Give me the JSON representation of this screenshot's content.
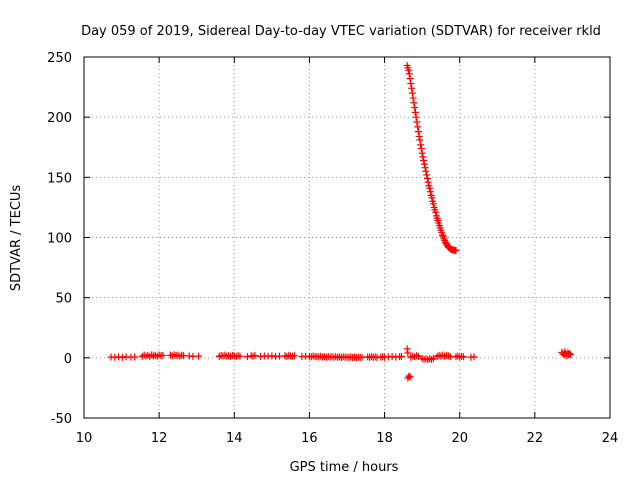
{
  "chart_data": {
    "type": "scatter",
    "title": "Day 059 of 2019, Sidereal Day-to-day VTEC variation (SDTVAR) for receiver rkld",
    "xlabel": "GPS time / hours",
    "ylabel": "SDTVAR / TECUs",
    "xlim": [
      10,
      24
    ],
    "ylim": [
      -50,
      250
    ],
    "xticks": [
      10,
      12,
      14,
      16,
      18,
      20,
      22,
      24
    ],
    "yticks": [
      -50,
      0,
      50,
      100,
      150,
      200,
      250
    ],
    "grid": true,
    "marker": "plus",
    "color": "#ff0000",
    "series": [
      {
        "name": "SDTVAR",
        "points": [
          [
            10.72,
            0.6
          ],
          [
            10.82,
            0.5
          ],
          [
            10.92,
            0.8
          ],
          [
            11.02,
            0.4
          ],
          [
            11.12,
            0.9
          ],
          [
            11.25,
            0.6
          ],
          [
            11.35,
            0.7
          ],
          [
            11.55,
            1.2
          ],
          [
            11.6,
            2.3
          ],
          [
            11.65,
            1.5
          ],
          [
            11.7,
            2.0
          ],
          [
            11.75,
            1.0
          ],
          [
            11.8,
            2.5
          ],
          [
            11.85,
            1.6
          ],
          [
            11.9,
            2.1
          ],
          [
            11.95,
            1.3
          ],
          [
            12.0,
            2.4
          ],
          [
            12.05,
            1.8
          ],
          [
            12.1,
            2.0
          ],
          [
            12.3,
            2.2
          ],
          [
            12.35,
            1.6
          ],
          [
            12.4,
            2.5
          ],
          [
            12.45,
            1.9
          ],
          [
            12.5,
            2.3
          ],
          [
            12.55,
            1.4
          ],
          [
            12.6,
            2.1
          ],
          [
            12.65,
            1.8
          ],
          [
            12.8,
            1.5
          ],
          [
            12.9,
            1.2
          ],
          [
            13.05,
            1.4
          ],
          [
            13.6,
            1.2
          ],
          [
            13.65,
            1.9
          ],
          [
            13.7,
            1.5
          ],
          [
            13.75,
            2.2
          ],
          [
            13.8,
            1.4
          ],
          [
            13.85,
            1.8
          ],
          [
            13.9,
            1.2
          ],
          [
            13.95,
            2.0
          ],
          [
            14.0,
            1.6
          ],
          [
            14.05,
            1.1
          ],
          [
            14.1,
            1.8
          ],
          [
            14.15,
            1.4
          ],
          [
            14.35,
            1.0
          ],
          [
            14.45,
            1.7
          ],
          [
            14.5,
            1.3
          ],
          [
            14.55,
            2.0
          ],
          [
            14.7,
            1.2
          ],
          [
            14.8,
            1.5
          ],
          [
            14.9,
            1.3
          ],
          [
            15.0,
            1.6
          ],
          [
            15.1,
            1.2
          ],
          [
            15.2,
            1.4
          ],
          [
            15.35,
            1.7
          ],
          [
            15.4,
            1.1
          ],
          [
            15.45,
            2.0
          ],
          [
            15.5,
            1.5
          ],
          [
            15.55,
            1.3
          ],
          [
            15.6,
            1.8
          ],
          [
            15.8,
            1.1
          ],
          [
            15.9,
            1.3
          ],
          [
            16.0,
            1.2
          ],
          [
            16.05,
            0.8
          ],
          [
            16.1,
            1.5
          ],
          [
            16.15,
            0.9
          ],
          [
            16.2,
            1.1
          ],
          [
            16.25,
            0.6
          ],
          [
            16.3,
            1.3
          ],
          [
            16.35,
            0.7
          ],
          [
            16.4,
            1.0
          ],
          [
            16.45,
            0.5
          ],
          [
            16.5,
            1.2
          ],
          [
            16.55,
            0.6
          ],
          [
            16.6,
            0.9
          ],
          [
            16.65,
            0.4
          ],
          [
            16.7,
            1.0
          ],
          [
            16.75,
            0.5
          ],
          [
            16.8,
            0.8
          ],
          [
            16.85,
            0.3
          ],
          [
            16.9,
            0.9
          ],
          [
            16.95,
            0.4
          ],
          [
            17.0,
            0.7
          ],
          [
            17.05,
            0.2
          ],
          [
            17.1,
            0.8
          ],
          [
            17.15,
            0.3
          ],
          [
            17.2,
            0.6
          ],
          [
            17.25,
            0.2
          ],
          [
            17.3,
            0.7
          ],
          [
            17.35,
            0.3
          ],
          [
            17.4,
            0.5
          ],
          [
            17.55,
            0.8
          ],
          [
            17.6,
            0.4
          ],
          [
            17.65,
            1.0
          ],
          [
            17.7,
            0.5
          ],
          [
            17.75,
            0.8
          ],
          [
            17.8,
            0.3
          ],
          [
            17.9,
            0.6
          ],
          [
            17.95,
            1.0
          ],
          [
            18.0,
            0.5
          ],
          [
            18.1,
            0.8
          ],
          [
            18.2,
            1.1
          ],
          [
            18.3,
            0.6
          ],
          [
            18.4,
            0.9
          ],
          [
            18.45,
            1.2
          ],
          [
            18.6,
            7.5
          ],
          [
            18.62,
            4.0
          ],
          [
            18.65,
            -15.2
          ],
          [
            18.62,
            -16.8
          ],
          [
            18.68,
            -15.8
          ],
          [
            18.7,
            0.5
          ],
          [
            18.75,
            1.5
          ],
          [
            18.8,
            1.0
          ],
          [
            18.85,
            1.8
          ],
          [
            18.9,
            1.2
          ],
          [
            19.0,
            -0.6
          ],
          [
            19.05,
            -1.2
          ],
          [
            19.1,
            -0.8
          ],
          [
            19.15,
            -1.5
          ],
          [
            19.2,
            -0.9
          ],
          [
            19.25,
            -1.3
          ],
          [
            19.3,
            -0.5
          ],
          [
            19.4,
            1.2
          ],
          [
            19.45,
            2.0
          ],
          [
            19.5,
            1.5
          ],
          [
            19.55,
            2.3
          ],
          [
            19.6,
            1.4
          ],
          [
            19.65,
            2.1
          ],
          [
            19.7,
            1.6
          ],
          [
            19.75,
            1.0
          ],
          [
            19.9,
            0.8
          ],
          [
            19.95,
            1.5
          ],
          [
            20.0,
            0.6
          ],
          [
            20.05,
            1.2
          ],
          [
            20.1,
            0.9
          ],
          [
            20.3,
            0.5
          ],
          [
            20.38,
            0.8
          ],
          [
            22.72,
            4.5
          ],
          [
            22.75,
            3.2
          ],
          [
            22.78,
            2.4
          ],
          [
            22.8,
            5.0
          ],
          [
            22.82,
            3.6
          ],
          [
            22.85,
            1.8
          ],
          [
            22.88,
            4.2
          ],
          [
            22.9,
            2.8
          ],
          [
            22.92,
            3.4
          ],
          [
            22.95,
            2.6
          ],
          [
            18.6,
            243
          ],
          [
            18.62,
            241
          ],
          [
            18.64,
            239
          ],
          [
            18.66,
            236
          ],
          [
            18.68,
            232
          ],
          [
            18.7,
            228
          ],
          [
            18.72,
            224
          ],
          [
            18.74,
            220
          ],
          [
            18.76,
            216
          ],
          [
            18.78,
            212
          ],
          [
            18.8,
            208
          ],
          [
            18.82,
            204
          ],
          [
            18.84,
            200
          ],
          [
            18.86,
            196
          ],
          [
            18.88,
            192
          ],
          [
            18.9,
            188
          ],
          [
            18.92,
            184
          ],
          [
            18.94,
            181
          ],
          [
            18.96,
            177
          ],
          [
            18.98,
            174
          ],
          [
            19.0,
            170
          ],
          [
            19.02,
            167
          ],
          [
            19.04,
            164
          ],
          [
            19.06,
            161
          ],
          [
            19.08,
            158
          ],
          [
            19.1,
            155
          ],
          [
            19.12,
            152
          ],
          [
            19.14,
            149
          ],
          [
            19.16,
            146
          ],
          [
            19.18,
            143
          ],
          [
            19.2,
            141
          ],
          [
            19.22,
            138
          ],
          [
            19.24,
            135
          ],
          [
            19.26,
            133
          ],
          [
            19.28,
            130
          ],
          [
            19.3,
            128
          ],
          [
            19.32,
            125
          ],
          [
            19.34,
            123
          ],
          [
            19.36,
            121
          ],
          [
            19.38,
            118
          ],
          [
            19.4,
            116
          ],
          [
            19.42,
            114
          ],
          [
            19.44,
            112
          ],
          [
            19.46,
            110
          ],
          [
            19.48,
            108
          ],
          [
            19.5,
            106
          ],
          [
            19.52,
            104
          ],
          [
            19.54,
            102
          ],
          [
            19.56,
            101
          ],
          [
            19.58,
            99
          ],
          [
            19.6,
            97.5
          ],
          [
            19.62,
            96
          ],
          [
            19.64,
            95
          ],
          [
            19.66,
            94
          ],
          [
            19.68,
            93
          ],
          [
            19.7,
            92
          ],
          [
            19.72,
            91.5
          ],
          [
            19.74,
            91
          ],
          [
            19.76,
            90.5
          ],
          [
            19.78,
            90
          ],
          [
            19.8,
            89.8
          ],
          [
            19.82,
            89.6
          ],
          [
            19.85,
            89.5
          ],
          [
            19.88,
            89.3
          ],
          [
            19.9,
            89.2
          ]
        ]
      }
    ]
  }
}
